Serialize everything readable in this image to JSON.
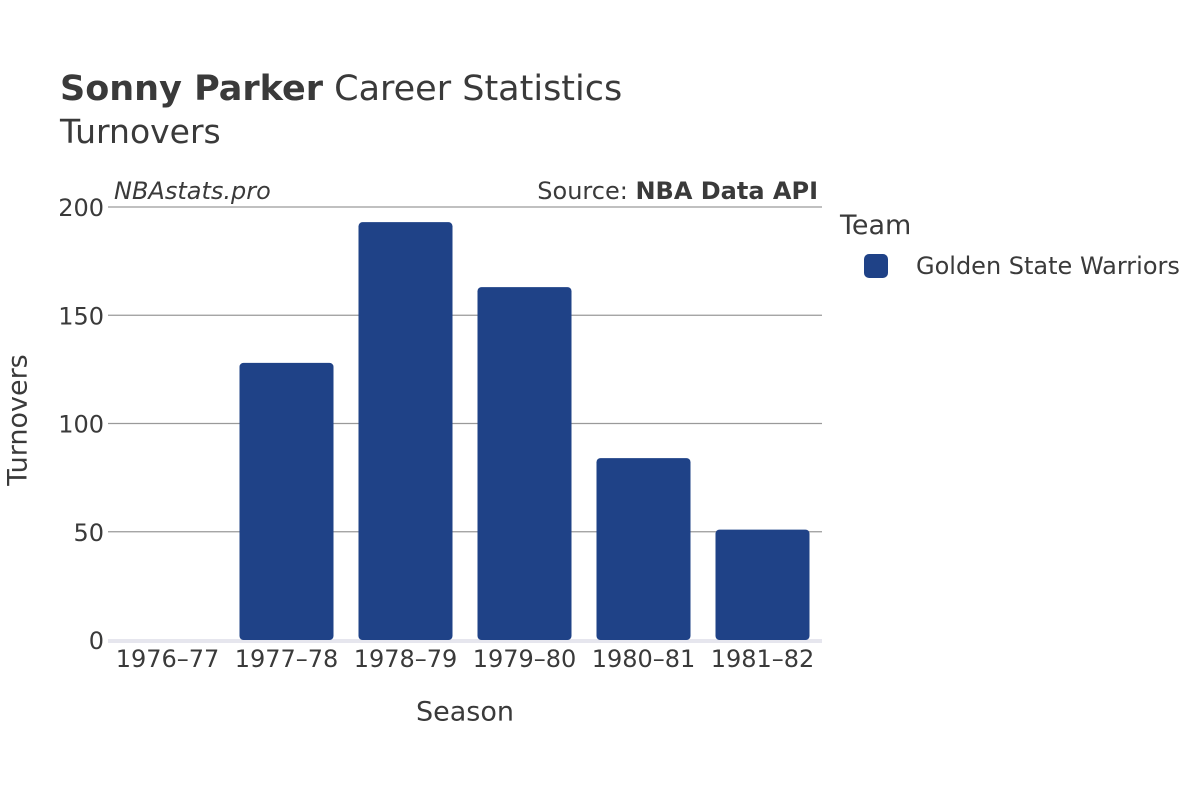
{
  "header": {
    "player_name": "Sonny Parker",
    "title_rest": " Career Statistics",
    "subtitle": "Turnovers",
    "watermark": "NBAstats.pro",
    "source_prefix": "Source: ",
    "source_name": "NBA Data API"
  },
  "legend": {
    "title": "Team",
    "items": [
      {
        "label": "Golden State Warriors",
        "color": "#1f4287"
      }
    ]
  },
  "chart_data": {
    "type": "bar",
    "title": "Sonny Parker Career Statistics",
    "subtitle": "Turnovers",
    "xlabel": "Season",
    "ylabel": "Turnovers",
    "categories": [
      "1976–77",
      "1977–78",
      "1978–79",
      "1979–80",
      "1980–81",
      "1981–82"
    ],
    "series": [
      {
        "name": "Golden State Warriors",
        "values": [
          0,
          128,
          193,
          163,
          84,
          51
        ],
        "color": "#1f4287"
      }
    ],
    "ylim": [
      0,
      200
    ],
    "yticks": [
      0,
      50,
      100,
      150,
      200
    ],
    "grid": true,
    "legend_position": "right"
  }
}
